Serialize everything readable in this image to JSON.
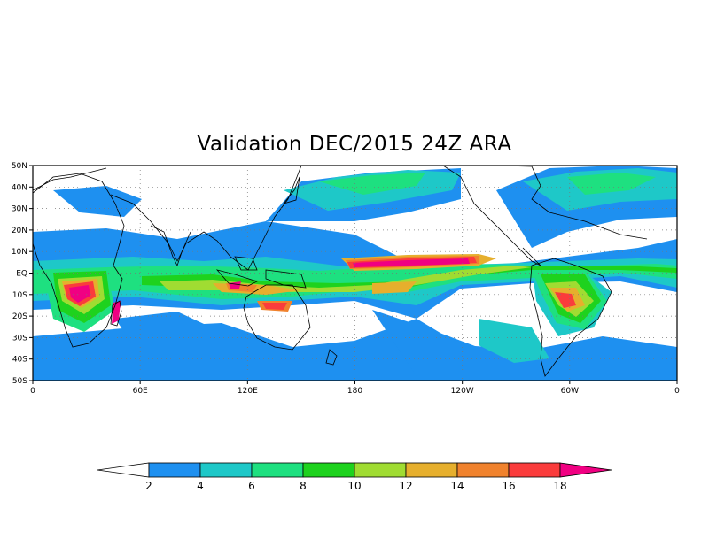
{
  "title": "Validation DEC/2015 24Z ARA",
  "map": {
    "projection": "cylindrical-equidistant",
    "lon_range": [
      0,
      360
    ],
    "lat_range": [
      -50,
      50
    ],
    "grid": "dotted",
    "lat_labels": [
      "50N",
      "40N",
      "30N",
      "20N",
      "10N",
      "EQ",
      "10S",
      "20S",
      "30S",
      "40S",
      "50S"
    ],
    "lat_values": [
      50,
      40,
      30,
      20,
      10,
      0,
      -10,
      -20,
      -30,
      -40,
      -50
    ],
    "lon_labels": [
      "0",
      "60E",
      "120E",
      "180",
      "120W",
      "60W",
      "0"
    ],
    "lon_values": [
      0,
      60,
      120,
      180,
      240,
      300,
      360
    ]
  },
  "colorbar": {
    "labels": [
      "2",
      "4",
      "6",
      "8",
      "10",
      "12",
      "14",
      "16",
      "18"
    ],
    "colors": [
      "#ffffff",
      "#1e90f0",
      "#1ec8c8",
      "#1ee080",
      "#1ed21e",
      "#a0dc32",
      "#e6af2d",
      "#f0822d",
      "#fa3c3c",
      "#f00082"
    ]
  }
}
